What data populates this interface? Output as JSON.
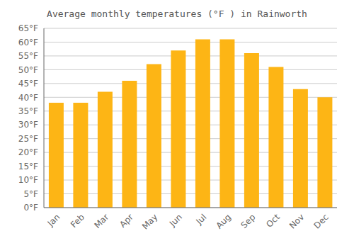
{
  "chart_data": {
    "type": "bar",
    "title": "Average monthly temperatures (°F ) in Rainworth",
    "categories": [
      "Jan",
      "Feb",
      "Mar",
      "Apr",
      "May",
      "Jun",
      "Jul",
      "Aug",
      "Sep",
      "Oct",
      "Nov",
      "Dec"
    ],
    "values": [
      38,
      38,
      42,
      46,
      52,
      57,
      61,
      61,
      56,
      51,
      43,
      40
    ],
    "color": "#FDB515",
    "ylim": [
      0,
      65
    ],
    "yticks": [
      {
        "value": 0,
        "label": "0°F"
      },
      {
        "value": 5,
        "label": "5°F"
      },
      {
        "value": 10,
        "label": "10°F"
      },
      {
        "value": 15,
        "label": "15°F"
      },
      {
        "value": 20,
        "label": "20°F"
      },
      {
        "value": 25,
        "label": "25°F"
      },
      {
        "value": 30,
        "label": "30°F"
      },
      {
        "value": 35,
        "label": "35°F"
      },
      {
        "value": 40,
        "label": "40°F"
      },
      {
        "value": 45,
        "label": "45°F"
      },
      {
        "value": 50,
        "label": "50°F"
      },
      {
        "value": 55,
        "label": "55°F"
      },
      {
        "value": 60,
        "label": "60°F"
      },
      {
        "value": 65,
        "label": "65°F"
      }
    ],
    "grid": true
  }
}
